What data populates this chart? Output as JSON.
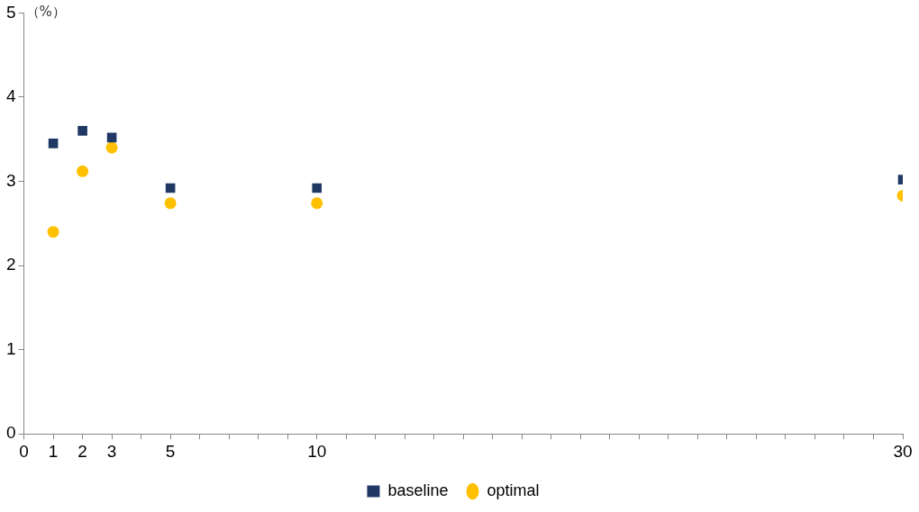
{
  "chart_data": {
    "type": "scatter",
    "ylabel": "（%）",
    "xlim": [
      0,
      30
    ],
    "ylim": [
      0,
      5
    ],
    "xticks": [
      0,
      1,
      2,
      3,
      {
        "value": 4,
        "label": null
      },
      5,
      {
        "value": 6,
        "label": null
      },
      {
        "value": 7,
        "label": null
      },
      {
        "value": 8,
        "label": null
      },
      {
        "value": 9,
        "label": null
      },
      10,
      {
        "value": 11,
        "label": null
      },
      {
        "value": 12,
        "label": null
      },
      {
        "value": 13,
        "label": null
      },
      {
        "value": 14,
        "label": null
      },
      {
        "value": 15,
        "label": null
      },
      {
        "value": 16,
        "label": null
      },
      {
        "value": 17,
        "label": null
      },
      {
        "value": 18,
        "label": null
      },
      {
        "value": 19,
        "label": null
      },
      {
        "value": 20,
        "label": null
      },
      {
        "value": 21,
        "label": null
      },
      {
        "value": 22,
        "label": null
      },
      {
        "value": 23,
        "label": null
      },
      {
        "value": 24,
        "label": null
      },
      {
        "value": 25,
        "label": null
      },
      {
        "value": 26,
        "label": null
      },
      {
        "value": 27,
        "label": null
      },
      {
        "value": 28,
        "label": null
      },
      {
        "value": 29,
        "label": null
      },
      30
    ],
    "yticks": [
      0,
      1,
      2,
      3,
      4,
      5
    ],
    "grid": false,
    "legend": "bottom",
    "x": [
      1,
      2,
      3,
      5,
      10,
      30
    ],
    "series": [
      {
        "name": "baseline",
        "color": "#1f3864",
        "marker": "square",
        "values": [
          3.45,
          3.6,
          3.52,
          2.92,
          2.92,
          3.02
        ]
      },
      {
        "name": "optimal",
        "color": "#ffc000",
        "marker": "circle",
        "values": [
          2.4,
          3.12,
          3.4,
          2.74,
          2.74,
          2.83
        ]
      }
    ]
  }
}
